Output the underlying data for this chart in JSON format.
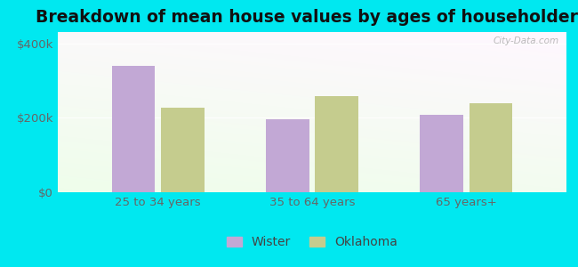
{
  "title": "Breakdown of mean house values by ages of householders",
  "categories": [
    "25 to 34 years",
    "35 to 64 years",
    "65 years+"
  ],
  "wister_values": [
    340000,
    197000,
    207000
  ],
  "oklahoma_values": [
    228000,
    258000,
    238000
  ],
  "wister_color": "#c2a8d5",
  "oklahoma_color": "#c5cc8e",
  "background_color": "#00e8f0",
  "ylim": [
    0,
    430000
  ],
  "ytick_labels": [
    "$0",
    "$200k",
    "$400k"
  ],
  "ytick_values": [
    0,
    200000,
    400000
  ],
  "legend_labels": [
    "Wister",
    "Oklahoma"
  ],
  "bar_width": 0.28,
  "title_fontsize": 13.5,
  "tick_fontsize": 9.5,
  "legend_fontsize": 10
}
